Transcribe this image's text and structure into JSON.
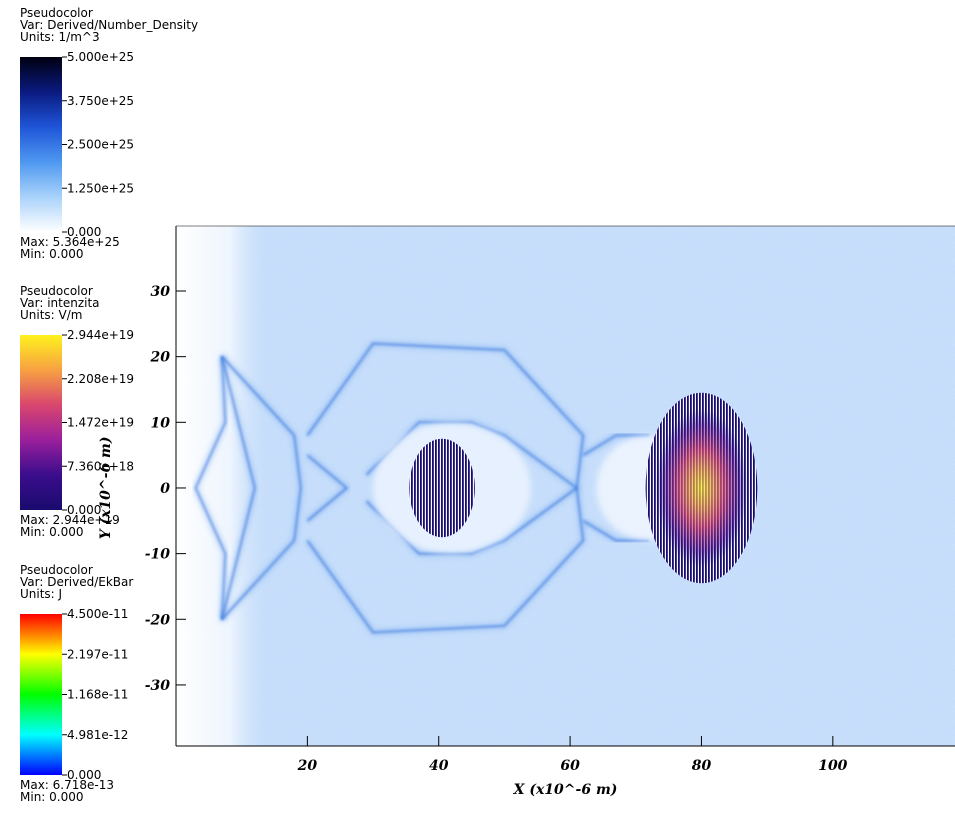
{
  "legends": [
    {
      "title": "Pseudocolor",
      "var": "Var: Derived/Number_Density",
      "units": "Units: 1/m^3",
      "ticks": [
        {
          "value": 5e+25,
          "label": "5.000e+25"
        },
        {
          "value": 3.75e+25,
          "label": "3.750e+25"
        },
        {
          "value": 2.5e+25,
          "label": "2.500e+25"
        },
        {
          "value": 1.25e+25,
          "label": "1.250e+25"
        },
        {
          "value": 0,
          "label": "0.000"
        }
      ],
      "max": "Max: 5.364e+25",
      "min": "Min: 0.000",
      "colors": [
        "#000010",
        "#0a1a80",
        "#1f55d8",
        "#4e98f0",
        "#a9d2fb",
        "#ffffff"
      ]
    },
    {
      "title": "Pseudocolor",
      "var": "Var: intenzita",
      "units": "Units: V/m",
      "ticks": [
        {
          "value": 2.944e+19,
          "label": "2.944e+19"
        },
        {
          "value": 2.208e+19,
          "label": "2.208e+19"
        },
        {
          "value": 1.472e+19,
          "label": "1.472e+19"
        },
        {
          "value": 7.36e+18,
          "label": "7.360e+18"
        },
        {
          "value": 0,
          "label": "0.000"
        }
      ],
      "max": "Max: 2.944e+19",
      "min": "Min: 0.000",
      "colors": [
        "#fff21e",
        "#f7a142",
        "#d9466e",
        "#9a1f9c",
        "#3a0d8c",
        "#1a0b6e"
      ]
    },
    {
      "title": "Pseudocolor",
      "var": "Var: Derived/EkBar",
      "units": "Units: J",
      "ticks": [
        {
          "value": 4.5e-11,
          "label": "4.500e-11"
        },
        {
          "value": 2.197e-11,
          "label": "2.197e-11"
        },
        {
          "value": 1.168e-11,
          "label": "1.168e-11"
        },
        {
          "value": 4.981e-12,
          "label": "4.981e-12"
        },
        {
          "value": 0,
          "label": "0.000"
        }
      ],
      "max": "Max: 6.718e-13",
      "min": "Min: 0.000",
      "colors": [
        "#ff0000",
        "#ffff00",
        "#00ff00",
        "#00ffff",
        "#0000ff"
      ]
    }
  ],
  "plot": {
    "xlabel": "X  (x10^-6 m)",
    "ylabel": "Y  (x10^-6 m)",
    "xlim": [
      0,
      118.6
    ],
    "ylim": [
      -39.3,
      39.9
    ],
    "xticks": [
      20,
      40,
      60,
      80,
      100
    ],
    "yticks": [
      -30,
      -20,
      -10,
      0,
      10,
      20,
      30
    ]
  }
}
